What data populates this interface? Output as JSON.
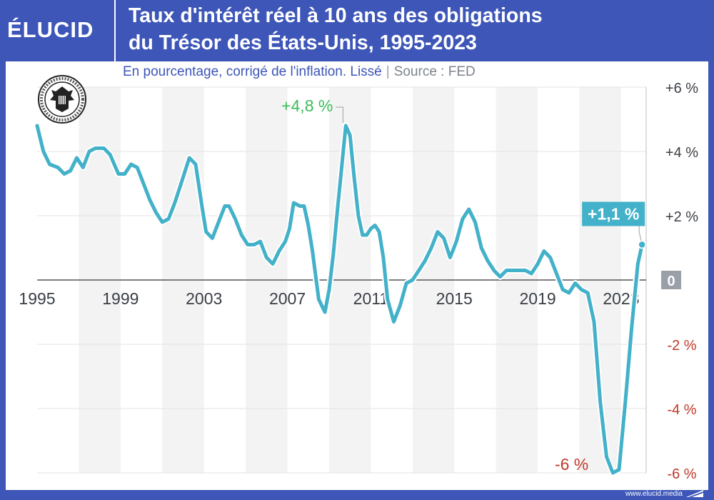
{
  "brand": {
    "logo_text": "ÉLUCID",
    "url": "www.elucid.media"
  },
  "header": {
    "title_line1": "Taux d'intérêt réel à 10 ans des obligations",
    "title_line2": "du Trésor des États-Unis, 1995-2023"
  },
  "subheader": {
    "unit": "En pourcentage, corrigé de l'inflation. Lissé",
    "separator": "|",
    "source": "Source : FED"
  },
  "seal": {
    "icon": "federal-reserve-seal-icon"
  },
  "colors": {
    "line": "#43b1c9",
    "positive": "#3dbb5c",
    "negative": "#c0392b",
    "neutral": "#3a3f46",
    "stripe": "#f3f3f3",
    "zero_badge": "#9aa0a8"
  },
  "chart_data": {
    "type": "line",
    "title": "Taux d'intérêt réel à 10 ans des obligations du Trésor des États-Unis, 1995-2023",
    "ylabel": "En pourcentage, corrigé de l'inflation. Lissé",
    "xlim": [
      1995.0,
      2024.2
    ],
    "ylim": [
      -6,
      6
    ],
    "x_ticks": [
      1995,
      1999,
      2003,
      2007,
      2011,
      2015,
      2019,
      2023
    ],
    "x_tick_labels": [
      "1995",
      "1999",
      "2003",
      "2007",
      "2011",
      "2015",
      "2019",
      "2023"
    ],
    "y_ticks": [
      6,
      4,
      2,
      0,
      -2,
      -4,
      -6
    ],
    "y_tick_labels": [
      "+6 %",
      "+4 %",
      "+2 %",
      "0",
      "-2 %",
      "-4 %",
      "-6 %"
    ],
    "grid": true,
    "series": [
      {
        "x": [
          1995.0,
          1995.3,
          1995.6,
          1996.0,
          1996.3,
          1996.6,
          1996.9,
          1997.2,
          1997.5,
          1997.8,
          1998.2,
          1998.5,
          1998.9,
          1999.2,
          1999.5,
          1999.8,
          2000.1,
          2000.4,
          2000.7,
          2001.0,
          2001.3,
          2001.6,
          2001.9,
          2002.3,
          2002.6,
          2002.9,
          2003.1,
          2003.4,
          2003.7,
          2004.0,
          2004.2,
          2004.5,
          2004.8,
          2005.1,
          2005.4,
          2005.7,
          2006.0,
          2006.3,
          2006.6,
          2006.9,
          2007.1,
          2007.3,
          2007.6,
          2007.8,
          2008.0,
          2008.2,
          2008.5,
          2008.8,
          2009.0,
          2009.2,
          2009.4,
          2009.6,
          2009.8,
          2010.0,
          2010.2,
          2010.4,
          2010.6,
          2010.8,
          2011.0,
          2011.2,
          2011.4,
          2011.6,
          2011.8,
          2012.1,
          2012.4,
          2012.7,
          2013.0,
          2013.3,
          2013.6,
          2013.9,
          2014.2,
          2014.5,
          2014.8,
          2015.1,
          2015.4,
          2015.7,
          2016.0,
          2016.3,
          2016.6,
          2016.9,
          2017.2,
          2017.5,
          2017.8,
          2018.1,
          2018.4,
          2018.7,
          2019.0,
          2019.3,
          2019.6,
          2019.9,
          2020.2,
          2020.5,
          2020.8,
          2021.1,
          2021.4,
          2021.7,
          2022.0,
          2022.3,
          2022.6,
          2022.9,
          2023.2,
          2023.5,
          2023.8,
          2024.0
        ],
        "y": [
          4.8,
          4.0,
          3.6,
          3.5,
          3.3,
          3.4,
          3.8,
          3.5,
          4.0,
          4.1,
          4.1,
          3.9,
          3.3,
          3.3,
          3.6,
          3.5,
          3.0,
          2.5,
          2.1,
          1.8,
          1.9,
          2.4,
          3.0,
          3.8,
          3.6,
          2.3,
          1.5,
          1.3,
          1.8,
          2.3,
          2.3,
          1.9,
          1.4,
          1.1,
          1.1,
          1.2,
          0.7,
          0.5,
          0.9,
          1.2,
          1.6,
          2.4,
          2.3,
          2.3,
          1.7,
          0.9,
          -0.6,
          -1.0,
          -0.3,
          0.8,
          2.2,
          3.5,
          4.8,
          4.5,
          3.2,
          2.0,
          1.4,
          1.4,
          1.6,
          1.7,
          1.5,
          0.7,
          -0.6,
          -1.3,
          -0.8,
          -0.1,
          0.0,
          0.3,
          0.6,
          1.0,
          1.5,
          1.3,
          0.7,
          1.2,
          1.9,
          2.2,
          1.8,
          1.0,
          0.6,
          0.3,
          0.1,
          0.3,
          0.3,
          0.3,
          0.3,
          0.2,
          0.5,
          0.9,
          0.7,
          0.2,
          -0.3,
          -0.4,
          -0.1,
          -0.3,
          -0.4,
          -1.3,
          -3.8,
          -5.5,
          -6.0,
          -5.9,
          -3.8,
          -1.5,
          0.5,
          1.1
        ]
      }
    ],
    "annotations": [
      {
        "label": "+4,8 %",
        "x": 2009.8,
        "y": 4.8,
        "kind": "max"
      },
      {
        "label": "-6 %",
        "x": 2022.6,
        "y": -6.0,
        "kind": "min"
      },
      {
        "label": "+1,1 %",
        "x": 2024.0,
        "y": 1.1,
        "kind": "last"
      }
    ]
  }
}
